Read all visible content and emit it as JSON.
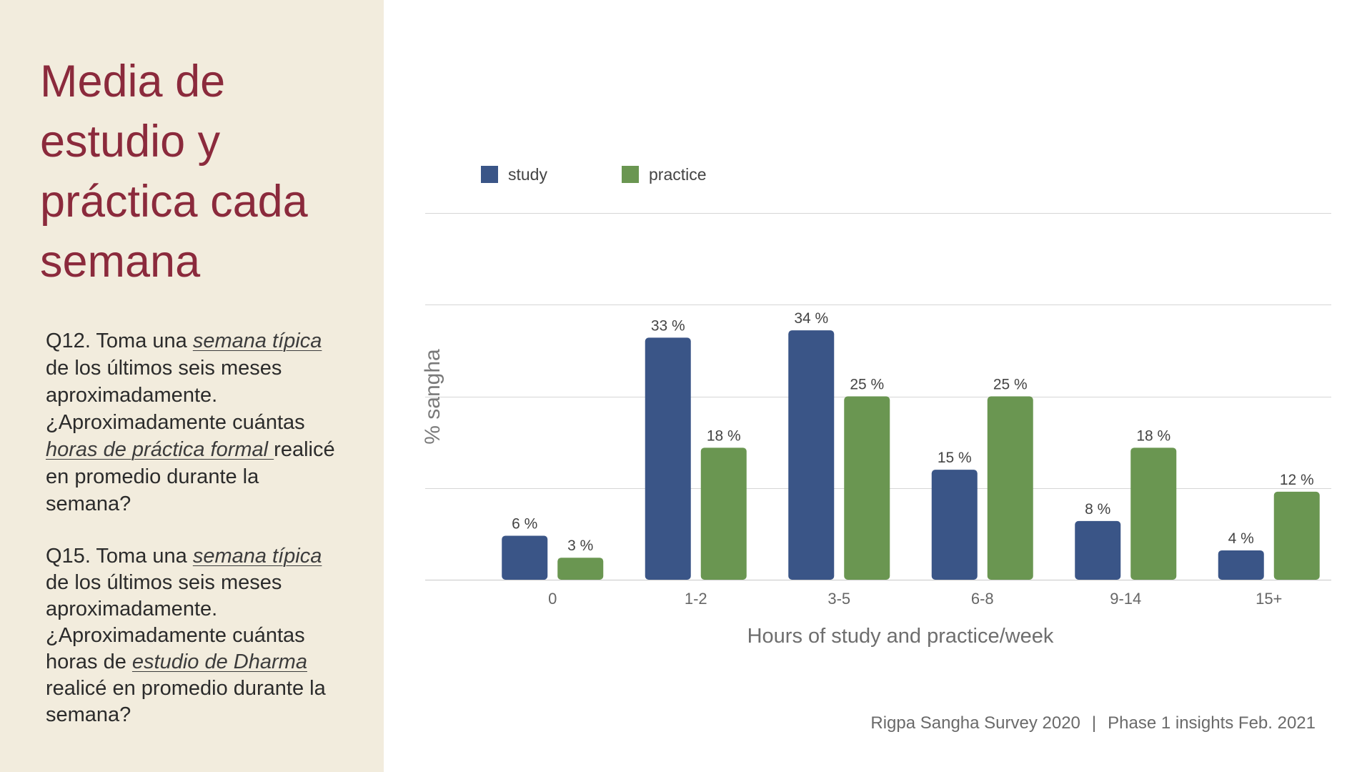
{
  "title": "Media de estudio y práctica cada semana",
  "q12": {
    "pre": "Q12. Toma una ",
    "em1": "semana típica ",
    "mid": "de los últimos seis meses aproximadamente. ¿Aproximadamente cuántas ",
    "em2": "horas de práctica formal ",
    "post": "realicé en promedio durante la semana?"
  },
  "q15": {
    "pre": "Q15. Toma una ",
    "em1": "semana típica ",
    "mid": "de los últimos seis meses aproximadamente. ¿Aproximadamente cuántas horas de ",
    "em2": "estudio de Dharma ",
    "post": "realicé en promedio durante la semana?"
  },
  "footer": {
    "left": "Rigpa Sangha Survey 2020",
    "separator": "|",
    "right": "Phase 1 insights Feb. 2021"
  },
  "colors": {
    "study": "#3a5587",
    "practice": "#6a9651",
    "title": "#8b2a3c",
    "panel": "#f2ecdd"
  },
  "chart_data": {
    "type": "bar",
    "title": "",
    "xlabel": "Hours of study and practice/week",
    "ylabel": "% sangha",
    "categories": [
      "0",
      "1-2",
      "3-5",
      "6-8",
      "9-14",
      "15+"
    ],
    "series": [
      {
        "name": "study",
        "values": [
          6,
          33,
          34,
          15,
          8,
          4
        ]
      },
      {
        "name": "practice",
        "values": [
          3,
          18,
          25,
          25,
          18,
          12
        ]
      }
    ],
    "value_suffix": " %",
    "ylim": [
      0,
      50
    ],
    "gridlines": [
      0,
      12.5,
      25,
      37.5,
      50
    ],
    "legend": "top-left"
  }
}
